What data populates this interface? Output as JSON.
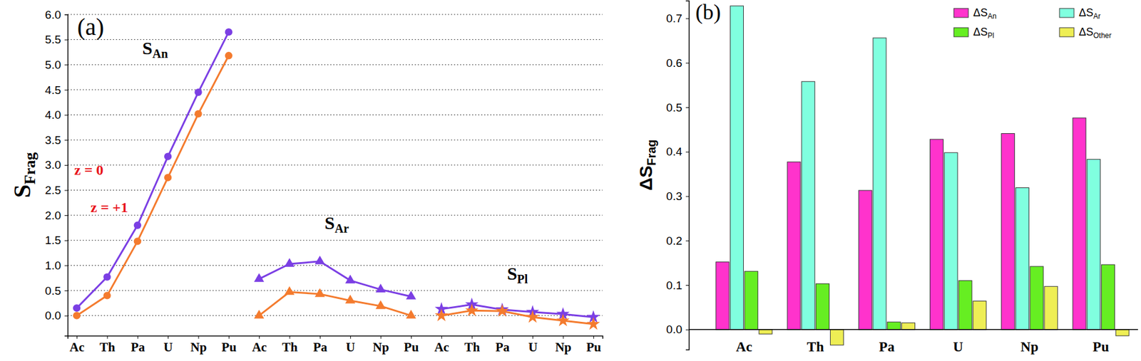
{
  "chart_data": [
    {
      "type": "line",
      "panel_label": "(a)",
      "y_label": [
        "S",
        "Frag"
      ],
      "categories": [
        "Ac",
        "Th",
        "Pa",
        "U",
        "Np",
        "Pu"
      ],
      "ylim": [
        -0.4,
        6.0
      ],
      "yticks": [
        {
          "value": 0,
          "label": "0.0"
        },
        {
          "value": 0.5,
          "label": "0.5"
        },
        {
          "value": 1,
          "label": "1.0"
        },
        {
          "value": 1.5,
          "label": "1.5"
        },
        {
          "value": 2,
          "label": "2.0"
        },
        {
          "value": 2.5,
          "label": "2.5"
        },
        {
          "value": 3,
          "label": "3.0"
        },
        {
          "value": 3.5,
          "label": "3.5"
        },
        {
          "value": 4,
          "label": "4.0"
        },
        {
          "value": 4.5,
          "label": "4.5"
        },
        {
          "value": 5,
          "label": "5.0"
        },
        {
          "value": 5.5,
          "label": "5.5"
        },
        {
          "value": 6,
          "label": "6.0"
        }
      ],
      "grid": true,
      "annotations": [
        {
          "text": "z = 0",
          "color": "#e8141b"
        },
        {
          "text": "z = +1",
          "color": "#e8141b"
        }
      ],
      "groups": [
        {
          "label": [
            "S",
            "An"
          ],
          "marker": "circle",
          "series": [
            {
              "color": "#7b3fe4",
              "values": [
                0.15,
                0.77,
                1.8,
                3.17,
                4.45,
                5.65
              ]
            },
            {
              "color": "#f47b2e",
              "values": [
                0.0,
                0.4,
                1.48,
                2.75,
                4.02,
                5.18
              ]
            }
          ]
        },
        {
          "label": [
            "S",
            "Ar"
          ],
          "marker": "triangle",
          "series": [
            {
              "color": "#7b3fe4",
              "values": [
                0.73,
                1.03,
                1.08,
                0.7,
                0.52,
                0.38
              ]
            },
            {
              "color": "#f47b2e",
              "values": [
                0.0,
                0.47,
                0.43,
                0.3,
                0.19,
                0.0
              ]
            }
          ]
        },
        {
          "label": [
            "S",
            "Pl"
          ],
          "marker": "star",
          "series": [
            {
              "color": "#7b3fe4",
              "values": [
                0.13,
                0.22,
                0.12,
                0.07,
                0.03,
                -0.03
              ]
            },
            {
              "color": "#f47b2e",
              "values": [
                0.0,
                0.1,
                0.09,
                -0.03,
                -0.1,
                -0.17
              ]
            }
          ]
        }
      ]
    },
    {
      "type": "bar",
      "panel_label": "(b)",
      "y_label": [
        "ΔS",
        "Frag"
      ],
      "categories": [
        "Ac",
        "Th",
        "Pa",
        "U",
        "Np",
        "Pu"
      ],
      "ylim": [
        -0.045,
        0.74
      ],
      "yticks": [
        {
          "value": 0,
          "label": "0.0"
        },
        {
          "value": 0.1,
          "label": "0.1"
        },
        {
          "value": 0.2,
          "label": "0.2"
        },
        {
          "value": 0.3,
          "label": "0.3"
        },
        {
          "value": 0.4,
          "label": "0.4"
        },
        {
          "value": 0.5,
          "label": "0.5"
        },
        {
          "value": 0.6,
          "label": "0.6"
        },
        {
          "value": 0.7,
          "label": "0.7"
        }
      ],
      "grid": false,
      "legend": "top-right",
      "series": [
        {
          "name": [
            "ΔS",
            "An"
          ],
          "color": "#ff33cc",
          "values": [
            0.152,
            0.377,
            0.313,
            0.428,
            0.441,
            0.476
          ]
        },
        {
          "name": [
            "ΔS",
            "Ar"
          ],
          "color": "#80ffdf",
          "values": [
            0.728,
            0.558,
            0.656,
            0.398,
            0.319,
            0.383
          ]
        },
        {
          "name": [
            "ΔS",
            "Pl"
          ],
          "color": "#66ee22",
          "values": [
            0.131,
            0.103,
            0.017,
            0.11,
            0.142,
            0.146
          ]
        },
        {
          "name": [
            "ΔS",
            "Other"
          ],
          "color": "#eeee55",
          "values": [
            -0.01,
            -0.035,
            0.015,
            0.064,
            0.097,
            -0.014
          ]
        }
      ]
    }
  ]
}
